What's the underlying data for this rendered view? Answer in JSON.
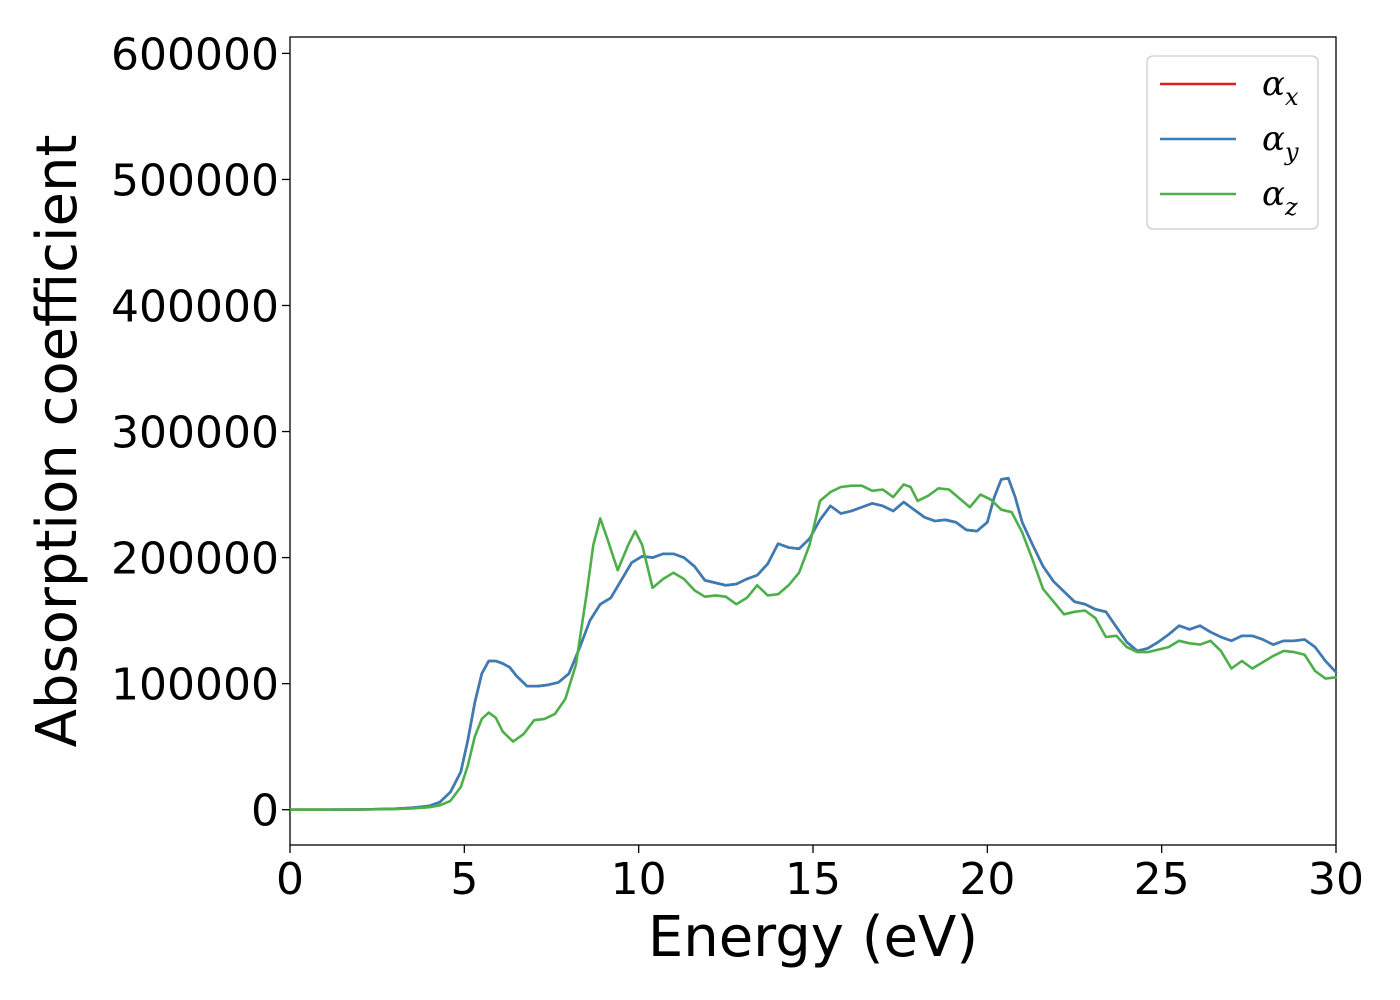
{
  "chart_data": {
    "type": "line",
    "xlabel": "Energy (eV)",
    "ylabel": "Absorption coefficient",
    "xlim": [
      0,
      30
    ],
    "ylim": [
      -28000,
      613000
    ],
    "xticks": [
      0,
      5,
      10,
      15,
      20,
      25,
      30
    ],
    "xtick_labels": [
      "0",
      "5",
      "10",
      "15",
      "20",
      "25",
      "30"
    ],
    "yticks": [
      0,
      100000,
      200000,
      300000,
      400000,
      500000,
      600000
    ],
    "ytick_labels": [
      "0",
      "100000",
      "200000",
      "300000",
      "400000",
      "500000",
      "600000"
    ],
    "grid": false,
    "legend_position": "top-right",
    "series": [
      {
        "name": "α",
        "subscript": "x",
        "color": "#e41a1c",
        "x": [
          0,
          1,
          2,
          3,
          3.5,
          4,
          4.3,
          4.6,
          4.9,
          5.1,
          5.3,
          5.5,
          5.7,
          5.9,
          6.1,
          6.3,
          6.5,
          6.8,
          7.1,
          7.4,
          7.7,
          8.0,
          8.3,
          8.6,
          8.9,
          9.2,
          9.5,
          9.8,
          10.1,
          10.4,
          10.7,
          11.0,
          11.3,
          11.6,
          11.9,
          12.2,
          12.5,
          12.8,
          13.1,
          13.4,
          13.7,
          14.0,
          14.3,
          14.6,
          14.9,
          15.2,
          15.5,
          15.8,
          16.1,
          16.4,
          16.7,
          17.0,
          17.3,
          17.6,
          17.9,
          18.2,
          18.5,
          18.8,
          19.1,
          19.4,
          19.7,
          20.0,
          20.2,
          20.4,
          20.6,
          20.8,
          21.0,
          21.3,
          21.6,
          21.9,
          22.2,
          22.5,
          22.8,
          23.1,
          23.4,
          23.7,
          24.0,
          24.3,
          24.6,
          24.9,
          25.2,
          25.5,
          25.8,
          26.1,
          26.4,
          26.7,
          27.0,
          27.3,
          27.6,
          27.9,
          28.2,
          28.5,
          28.8,
          29.1,
          29.4,
          29.7,
          30
        ],
        "values": [
          0,
          0,
          200,
          700,
          1500,
          3000,
          6000,
          14000,
          30000,
          55000,
          85000,
          108000,
          118000,
          118000,
          116000,
          113000,
          106000,
          98000,
          98000,
          99000,
          101000,
          108000,
          128000,
          150000,
          163000,
          168000,
          182000,
          196000,
          201000,
          200000,
          203000,
          203000,
          200000,
          193000,
          182000,
          180000,
          178000,
          179000,
          183000,
          186000,
          195000,
          211000,
          208000,
          207000,
          215000,
          230000,
          241000,
          235000,
          237000,
          240000,
          243000,
          241000,
          237000,
          244000,
          238000,
          232000,
          229000,
          230000,
          228000,
          222000,
          221000,
          228000,
          248000,
          262000,
          263000,
          248000,
          228000,
          210000,
          193000,
          181000,
          173000,
          165000,
          163000,
          159000,
          157000,
          145000,
          133000,
          126000,
          128000,
          133000,
          139000,
          146000,
          143000,
          146000,
          141000,
          137000,
          134000,
          138000,
          138000,
          135000,
          131000,
          134000,
          134000,
          135000,
          129000,
          118000,
          109000
        ]
      },
      {
        "name": "α",
        "subscript": "y",
        "color": "#377eb8",
        "x": [
          0,
          1,
          2,
          3,
          3.5,
          4,
          4.3,
          4.6,
          4.9,
          5.1,
          5.3,
          5.5,
          5.7,
          5.9,
          6.1,
          6.3,
          6.5,
          6.8,
          7.1,
          7.4,
          7.7,
          8.0,
          8.3,
          8.6,
          8.9,
          9.2,
          9.5,
          9.8,
          10.1,
          10.4,
          10.7,
          11.0,
          11.3,
          11.6,
          11.9,
          12.2,
          12.5,
          12.8,
          13.1,
          13.4,
          13.7,
          14.0,
          14.3,
          14.6,
          14.9,
          15.2,
          15.5,
          15.8,
          16.1,
          16.4,
          16.7,
          17.0,
          17.3,
          17.6,
          17.9,
          18.2,
          18.5,
          18.8,
          19.1,
          19.4,
          19.7,
          20.0,
          20.2,
          20.4,
          20.6,
          20.8,
          21.0,
          21.3,
          21.6,
          21.9,
          22.2,
          22.5,
          22.8,
          23.1,
          23.4,
          23.7,
          24.0,
          24.3,
          24.6,
          24.9,
          25.2,
          25.5,
          25.8,
          26.1,
          26.4,
          26.7,
          27.0,
          27.3,
          27.6,
          27.9,
          28.2,
          28.5,
          28.8,
          29.1,
          29.4,
          29.7,
          30
        ],
        "values": [
          0,
          0,
          200,
          700,
          1500,
          3000,
          6000,
          14000,
          30000,
          55000,
          85000,
          108000,
          118000,
          118000,
          116000,
          113000,
          106000,
          98000,
          98000,
          99000,
          101000,
          108000,
          128000,
          150000,
          163000,
          168000,
          182000,
          196000,
          201000,
          200000,
          203000,
          203000,
          200000,
          193000,
          182000,
          180000,
          178000,
          179000,
          183000,
          186000,
          195000,
          211000,
          208000,
          207000,
          215000,
          230000,
          241000,
          235000,
          237000,
          240000,
          243000,
          241000,
          237000,
          244000,
          238000,
          232000,
          229000,
          230000,
          228000,
          222000,
          221000,
          228000,
          248000,
          262000,
          263000,
          248000,
          228000,
          210000,
          193000,
          181000,
          173000,
          165000,
          163000,
          159000,
          157000,
          145000,
          133000,
          126000,
          128000,
          133000,
          139000,
          146000,
          143000,
          146000,
          141000,
          137000,
          134000,
          138000,
          138000,
          135000,
          131000,
          134000,
          134000,
          135000,
          129000,
          118000,
          109000
        ]
      },
      {
        "name": "α",
        "subscript": "z",
        "color": "#4daf4a",
        "x": [
          0,
          1,
          2,
          3,
          3.5,
          4,
          4.3,
          4.6,
          4.9,
          5.1,
          5.3,
          5.5,
          5.7,
          5.9,
          6.1,
          6.4,
          6.7,
          7.0,
          7.3,
          7.6,
          7.9,
          8.2,
          8.5,
          8.7,
          8.9,
          9.1,
          9.4,
          9.7,
          9.9,
          10.1,
          10.4,
          10.7,
          11.0,
          11.3,
          11.6,
          11.9,
          12.2,
          12.5,
          12.8,
          13.1,
          13.4,
          13.7,
          14.0,
          14.3,
          14.6,
          14.9,
          15.2,
          15.5,
          15.8,
          16.1,
          16.4,
          16.7,
          17.0,
          17.3,
          17.6,
          17.8,
          18.0,
          18.3,
          18.6,
          18.9,
          19.2,
          19.5,
          19.8,
          20.1,
          20.4,
          20.7,
          21.0,
          21.3,
          21.6,
          21.9,
          22.2,
          22.5,
          22.8,
          23.1,
          23.4,
          23.7,
          24.0,
          24.3,
          24.6,
          24.9,
          25.2,
          25.5,
          25.8,
          26.1,
          26.4,
          26.7,
          27.0,
          27.3,
          27.6,
          27.9,
          28.2,
          28.5,
          28.8,
          29.1,
          29.4,
          29.7,
          30
        ],
        "values": [
          0,
          0,
          200,
          500,
          1000,
          2000,
          3500,
          7000,
          18000,
          35000,
          58000,
          72000,
          77000,
          73000,
          62000,
          54000,
          60000,
          71000,
          72000,
          76000,
          88000,
          115000,
          170000,
          210000,
          231000,
          215000,
          190000,
          210000,
          221000,
          210000,
          176000,
          183000,
          188000,
          183000,
          174000,
          169000,
          170000,
          169000,
          163000,
          168000,
          178000,
          170000,
          171000,
          178000,
          188000,
          210000,
          245000,
          252000,
          256000,
          257000,
          257000,
          253000,
          254000,
          248000,
          258000,
          256000,
          245000,
          249000,
          255000,
          254000,
          247000,
          240000,
          250000,
          246000,
          238000,
          236000,
          220000,
          198000,
          175000,
          165000,
          155000,
          157000,
          158000,
          152000,
          137000,
          138000,
          129000,
          125000,
          125000,
          127000,
          129000,
          134000,
          132000,
          131000,
          134000,
          126000,
          112000,
          118000,
          112000,
          117000,
          122000,
          126000,
          125000,
          123000,
          110000,
          104000,
          105000
        ]
      }
    ]
  }
}
